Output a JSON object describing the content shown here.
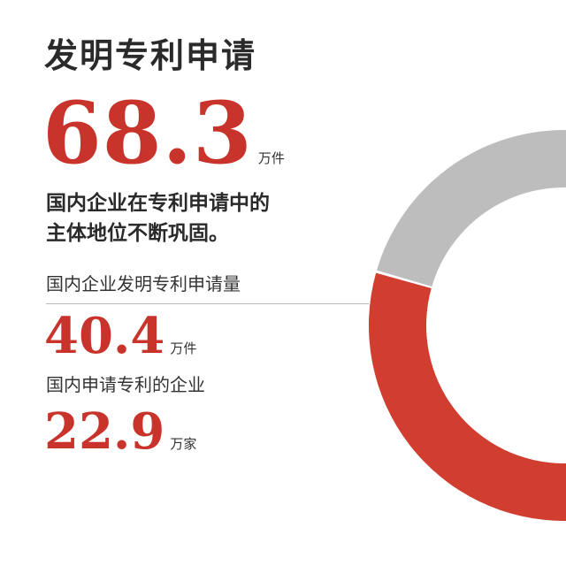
{
  "title": "发明专利申请",
  "total": {
    "value": "68.3",
    "unit": "万件"
  },
  "description": [
    "国内企业在专利申请中的",
    "主体地位不断巩固。"
  ],
  "stats": [
    {
      "label": "国内企业发明专利申请量",
      "value": "40.4",
      "unit": "万件"
    },
    {
      "label": "国内申请专利的企业",
      "value": "22.9",
      "unit": "万家"
    }
  ],
  "chart_data": {
    "type": "pie",
    "style": "donut, partially cropped at right edge",
    "total": 68.3,
    "slices": [
      {
        "label": "国内企业发明专利申请量",
        "value": 40.4,
        "color": "#d13d2f"
      },
      {
        "value": 27.9,
        "color": "#bdbdbd"
      }
    ]
  }
}
